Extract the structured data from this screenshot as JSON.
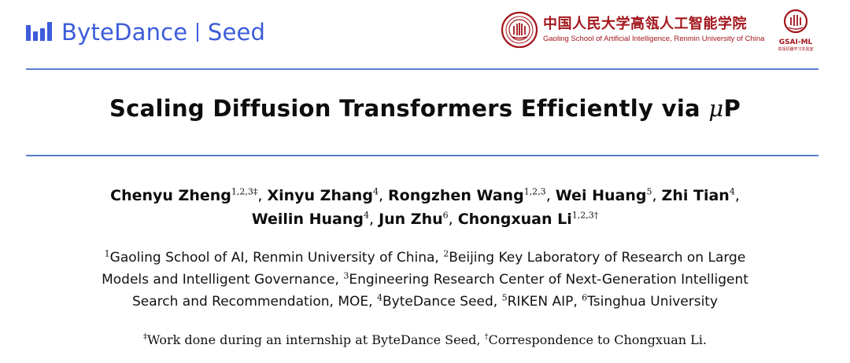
{
  "header": {
    "bytedance_label": "ByteDance",
    "seed_label": "Seed",
    "ruc_name_cn": "中国人民大学高瓴人工智能学院",
    "ruc_name_en": "Gaoling School of Artificial Intelligence, Renmin University of China",
    "gsai_label": "GSAI-ML",
    "gsai_sub": "高瓴机器学习实验室"
  },
  "title": {
    "prefix": "Scaling Diffusion Transformers Efficiently via ",
    "mu": "μ",
    "suffix": "P"
  },
  "authors": {
    "lines": [
      [
        {
          "name": "Chenyu Zheng",
          "sup": "1,2,3‡",
          "sep": ", "
        },
        {
          "name": "Xinyu Zhang",
          "sup": "4",
          "sep": ", "
        },
        {
          "name": "Rongzhen Wang",
          "sup": "1,2,3",
          "sep": ", "
        },
        {
          "name": "Wei Huang",
          "sup": "5",
          "sep": ", "
        },
        {
          "name": "Zhi Tian",
          "sup": "4",
          "sep": ","
        }
      ],
      [
        {
          "name": "Weilin Huang",
          "sup": "4",
          "sep": ", "
        },
        {
          "name": "Jun Zhu",
          "sup": "6",
          "sep": ", "
        },
        {
          "name": "Chongxuan Li",
          "sup": "1,2,3†",
          "sep": ""
        }
      ]
    ]
  },
  "affiliations": {
    "lines": [
      [
        {
          "sup": "1",
          "text": "Gaoling School of AI, Renmin University of China, "
        },
        {
          "sup": "2",
          "text": "Beijing Key Laboratory of Research on Large"
        }
      ],
      [
        {
          "sup": "",
          "text": "Models and Intelligent Governance, "
        },
        {
          "sup": "3",
          "text": "Engineering Research Center of Next-Generation Intelligent"
        }
      ],
      [
        {
          "sup": "",
          "text": "Search and Recommendation, MOE, "
        },
        {
          "sup": "4",
          "text": "ByteDance Seed, "
        },
        {
          "sup": "5",
          "text": "RIKEN AIP, "
        },
        {
          "sup": "6",
          "text": "Tsinghua University"
        }
      ]
    ]
  },
  "notes": [
    {
      "sup": "‡",
      "text": "Work done during an internship at ByteDance Seed, "
    },
    {
      "sup": "†",
      "text": "Correspondence to Chongxuan Li."
    }
  ],
  "colors": {
    "bytedance_blue": "#3c5cdb",
    "ruc_red": "#a3161c",
    "rule_blue": "#5a7fd0"
  }
}
